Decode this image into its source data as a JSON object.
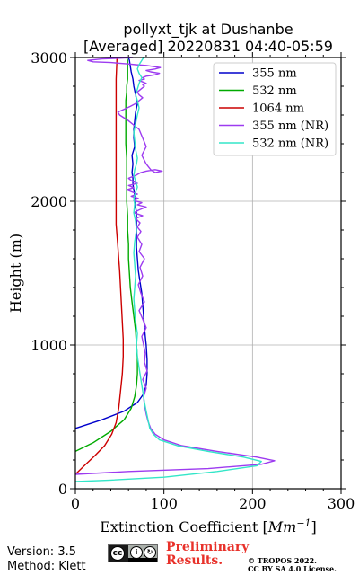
{
  "chart_data": {
    "type": "line",
    "title": [
      "pollyxt_tjk at Dushanbe",
      "[Averaged] 20220831 04:40-05:59"
    ],
    "xlabel": "Extinction Coefficient",
    "xlabel_unit_base": "Mm",
    "xlabel_unit_exp": "−1",
    "ylabel": "Height (m)",
    "xlim": [
      0,
      300
    ],
    "ylim": [
      0,
      3000
    ],
    "xticks": [
      0,
      100,
      200,
      300
    ],
    "yticks": [
      0,
      1000,
      2000,
      3000
    ],
    "grid": true,
    "legend_position": "top-right",
    "series": [
      {
        "name": "355 nm",
        "color": "#0000cc",
        "x": [
          0,
          30,
          55,
          70,
          77,
          80,
          81,
          81,
          80,
          79,
          78,
          77,
          76,
          75,
          73,
          71,
          70,
          69,
          69,
          69,
          69,
          68,
          68,
          67,
          66,
          65,
          65,
          64,
          65,
          64,
          67,
          66,
          66,
          67,
          68,
          70,
          68,
          66,
          65,
          63,
          62,
          61,
          60
        ],
        "y": [
          420,
          480,
          540,
          600,
          660,
          720,
          800,
          900,
          1000,
          1060,
          1120,
          1200,
          1280,
          1360,
          1440,
          1520,
          1600,
          1680,
          1760,
          1840,
          1920,
          1960,
          2000,
          2040,
          2080,
          2120,
          2160,
          2200,
          2260,
          2320,
          2380,
          2440,
          2500,
          2560,
          2620,
          2680,
          2740,
          2800,
          2850,
          2900,
          2940,
          2980,
          3000
        ]
      },
      {
        "name": "532 nm",
        "color": "#00aa00",
        "x": [
          0,
          20,
          40,
          55,
          63,
          67,
          69,
          70,
          70,
          69,
          68,
          66,
          64,
          62,
          61,
          60,
          60,
          59,
          59,
          58,
          58,
          58,
          58,
          57,
          57,
          57,
          57,
          58,
          58,
          59,
          59,
          59,
          59,
          58
        ],
        "y": [
          260,
          320,
          400,
          480,
          560,
          640,
          720,
          800,
          900,
          1000,
          1100,
          1200,
          1300,
          1400,
          1500,
          1600,
          1700,
          1800,
          1900,
          2000,
          2100,
          2200,
          2300,
          2400,
          2500,
          2600,
          2700,
          2760,
          2800,
          2850,
          2900,
          2950,
          2980,
          3000
        ]
      },
      {
        "name": "1064 nm",
        "color": "#cc0000",
        "x": [
          0,
          10,
          22,
          33,
          41,
          46,
          49,
          51,
          53,
          54,
          54,
          53,
          52,
          51,
          50,
          49,
          48,
          47,
          46,
          46,
          46,
          46,
          46,
          46,
          46,
          46,
          46,
          46,
          46,
          47
        ],
        "y": [
          100,
          160,
          230,
          300,
          380,
          460,
          560,
          680,
          800,
          920,
          1040,
          1160,
          1280,
          1400,
          1520,
          1600,
          1680,
          1760,
          1840,
          1920,
          2000,
          2100,
          2200,
          2300,
          2400,
          2500,
          2600,
          2700,
          2850,
          3000
        ]
      },
      {
        "name": "355 nm (NR)",
        "color": "#9d3bf0",
        "x": [
          0,
          60,
          150,
          210,
          225,
          205,
          160,
          120,
          100,
          90,
          85,
          82,
          80,
          78,
          77,
          80,
          76,
          81,
          78,
          79,
          77,
          75,
          80,
          76,
          72,
          78,
          74,
          71,
          76,
          73,
          78,
          72,
          75,
          70,
          74,
          70,
          73,
          68,
          76,
          66,
          72,
          80,
          70,
          75,
          66,
          71,
          63,
          70,
          64,
          58,
          66,
          60,
          70,
          64,
          60,
          68,
          74,
          80,
          90,
          98,
          90,
          85,
          80,
          75,
          80,
          76,
          72,
          60,
          50,
          48,
          55,
          62,
          68,
          72,
          76,
          72,
          70,
          74,
          78,
          76,
          80,
          76,
          72,
          78,
          76,
          80,
          85,
          90,
          95,
          85,
          80,
          90,
          96,
          80,
          68,
          60,
          50,
          40,
          20,
          14,
          30,
          50,
          65
        ],
        "y": [
          100,
          120,
          140,
          170,
          195,
          220,
          260,
          300,
          340,
          380,
          420,
          470,
          520,
          580,
          640,
          700,
          760,
          820,
          880,
          940,
          1000,
          1060,
          1120,
          1180,
          1240,
          1300,
          1360,
          1420,
          1480,
          1540,
          1600,
          1650,
          1700,
          1750,
          1790,
          1820,
          1850,
          1880,
          1900,
          1920,
          1940,
          1960,
          1975,
          1990,
          2005,
          2020,
          2035,
          2050,
          2065,
          2080,
          2095,
          2110,
          2125,
          2140,
          2160,
          2180,
          2200,
          2210,
          2220,
          2210,
          2200,
          2220,
          2260,
          2320,
          2380,
          2440,
          2500,
          2560,
          2600,
          2620,
          2640,
          2660,
          2680,
          2700,
          2720,
          2740,
          2760,
          2780,
          2800,
          2810,
          2820,
          2830,
          2840,
          2850,
          2860,
          2870,
          2875,
          2880,
          2890,
          2900,
          2910,
          2920,
          2930,
          2945,
          2950,
          2955,
          2960,
          2965,
          2970,
          2980,
          2990,
          2995,
          3000
        ]
      },
      {
        "name": "532 nm (NR)",
        "color": "#33e6c8",
        "x": [
          0,
          40,
          100,
          160,
          205,
          210,
          190,
          150,
          115,
          95,
          88,
          84,
          82,
          80,
          78,
          76,
          74,
          72,
          70,
          69,
          70,
          68,
          67,
          66,
          67,
          68,
          67,
          66,
          67,
          69,
          68,
          66,
          67,
          66,
          68,
          70,
          68,
          66,
          67,
          69,
          70,
          68,
          67,
          66,
          68,
          70,
          72,
          70,
          68,
          70,
          72,
          75,
          72,
          70,
          72,
          74,
          76,
          78
        ],
        "y": [
          50,
          60,
          80,
          120,
          160,
          190,
          220,
          260,
          300,
          340,
          380,
          420,
          480,
          540,
          600,
          680,
          760,
          840,
          920,
          1000,
          1080,
          1160,
          1240,
          1320,
          1400,
          1480,
          1560,
          1640,
          1720,
          1800,
          1860,
          1920,
          1980,
          2020,
          2060,
          2100,
          2140,
          2180,
          2220,
          2260,
          2300,
          2360,
          2420,
          2480,
          2540,
          2600,
          2650,
          2700,
          2740,
          2780,
          2820,
          2860,
          2890,
          2920,
          2950,
          2970,
          2990,
          3000
        ]
      }
    ]
  },
  "footer": {
    "version": "Version: 3.5",
    "method": "Method: Klett",
    "preliminary_line1": "Preliminary",
    "preliminary_line2": "Results.",
    "copyright_line1": "© TROPOS 2022.",
    "copyright_line2": "CC BY SA 4.0 License.",
    "license_badge_text": "BY SA"
  }
}
